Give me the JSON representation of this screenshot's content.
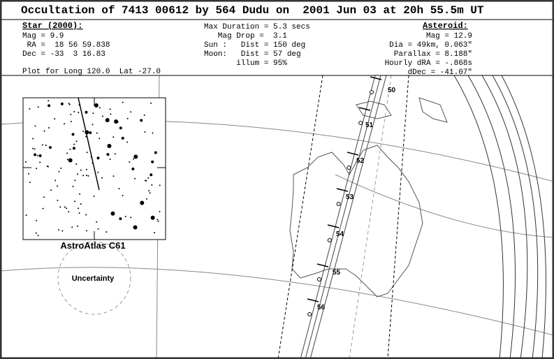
{
  "header": {
    "title": "Occultation of 7413 00612 by 564 Dudu on  2001 Jun 03 at 20h 55.5m UT"
  },
  "star": {
    "heading": "Star (2000):",
    "lines": [
      "Mag = 9.9",
      " RA =  18 56 59.838",
      "Dec = -33  3 16.83"
    ]
  },
  "event": {
    "lines": [
      "Max Duration = 5.3 secs",
      "   Mag Drop =  3.1",
      "Sun :   Dist = 150 deg",
      "Moon:   Dist = 57 deg",
      "       illum = 95%"
    ]
  },
  "asteroid": {
    "heading": "Asteroid:",
    "lines": [
      "Mag = 12.9",
      "Dia = 49km, 0.063\"",
      "Parallax = 8.188\"",
      "Hourly dRA = -.868s",
      "dDec = -41.07\""
    ]
  },
  "plot_note": "Plot for Long 120.0  Lat -27.0",
  "map": {
    "time_labels": [
      "50",
      "51",
      "52",
      "53",
      "54",
      "55",
      "56"
    ],
    "atlas_label": "AstroAtlas C61",
    "uncertainty_label": "Uncertainty"
  }
}
